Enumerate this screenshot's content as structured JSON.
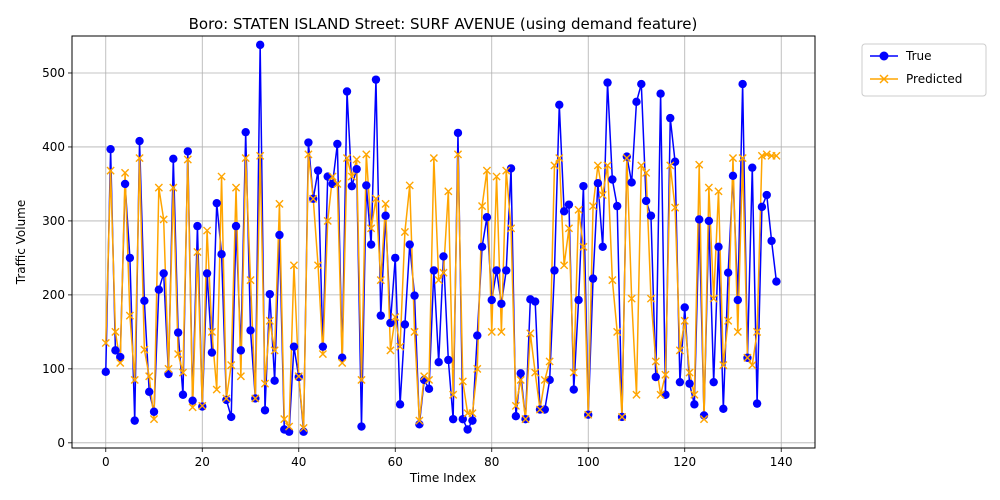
{
  "colors": {
    "true": "#0000ff",
    "predicted": "#ffa500",
    "grid": "#b0b0b0"
  },
  "chart_data": {
    "type": "line",
    "title": "Boro: STATEN ISLAND Street: SURF AVENUE (using demand feature)",
    "xlabel": "Time Index",
    "ylabel": "Traffic Volume",
    "xlim": [
      -7,
      147
    ],
    "ylim": [
      -7,
      550
    ],
    "xticks": [
      0,
      20,
      40,
      60,
      80,
      100,
      120,
      140
    ],
    "yticks": [
      0,
      100,
      200,
      300,
      400,
      500
    ],
    "grid": true,
    "legend_position": "top-right",
    "series": [
      {
        "name": "True",
        "marker": "circle",
        "values": [
          96,
          397,
          125,
          116,
          350,
          250,
          30,
          408,
          192,
          69,
          42,
          207,
          229,
          93,
          384,
          149,
          65,
          394,
          57,
          293,
          49,
          229,
          122,
          324,
          255,
          58,
          35,
          293,
          125,
          420,
          152,
          60,
          538,
          44,
          201,
          84,
          281,
          18,
          15,
          130,
          89,
          15,
          406,
          330,
          368,
          130,
          360,
          350,
          404,
          115,
          475,
          347,
          370,
          22,
          348,
          268,
          491,
          172,
          307,
          162,
          250,
          52,
          160,
          268,
          199,
          25,
          85,
          73,
          233,
          109,
          252,
          112,
          32,
          419,
          32,
          18,
          30,
          145,
          265,
          305,
          193,
          233,
          188,
          233,
          371,
          36,
          94,
          32,
          194,
          191,
          45,
          45,
          85,
          233,
          457,
          313,
          322,
          72,
          193,
          347,
          38,
          222,
          351,
          265,
          487,
          356,
          320,
          35,
          387,
          352,
          461,
          485,
          327,
          307,
          89,
          472,
          65,
          439,
          380,
          82,
          183,
          80,
          52,
          302,
          37,
          300,
          82,
          265,
          46,
          230,
          361,
          193,
          485,
          115,
          372,
          53,
          319,
          335,
          273,
          218
        ]
      },
      {
        "name": "Predicted",
        "marker": "x",
        "values": [
          135,
          368,
          150,
          108,
          365,
          172,
          85,
          385,
          126,
          90,
          32,
          345,
          302,
          100,
          345,
          120,
          95,
          383,
          48,
          258,
          50,
          287,
          150,
          72,
          360,
          60,
          105,
          345,
          90,
          385,
          220,
          60,
          388,
          80,
          165,
          125,
          323,
          32,
          22,
          240,
          90,
          20,
          390,
          330,
          240,
          120,
          300,
          360,
          350,
          108,
          385,
          360,
          383,
          85,
          390,
          290,
          330,
          220,
          323,
          125,
          170,
          130,
          285,
          348,
          150,
          30,
          90,
          85,
          385,
          220,
          230,
          340,
          65,
          390,
          83,
          40,
          40,
          100,
          320,
          368,
          150,
          360,
          150,
          368,
          290,
          50,
          85,
          32,
          148,
          95,
          45,
          85,
          110,
          375,
          385,
          240,
          290,
          95,
          315,
          265,
          38,
          320,
          375,
          335,
          375,
          220,
          150,
          35,
          385,
          195,
          65,
          375,
          365,
          195,
          110,
          65,
          92,
          375,
          318,
          125,
          165,
          95,
          65,
          376,
          32,
          345,
          195,
          340,
          105,
          165,
          385,
          150,
          385,
          115,
          105,
          150,
          388,
          390,
          388,
          388
        ]
      }
    ]
  }
}
